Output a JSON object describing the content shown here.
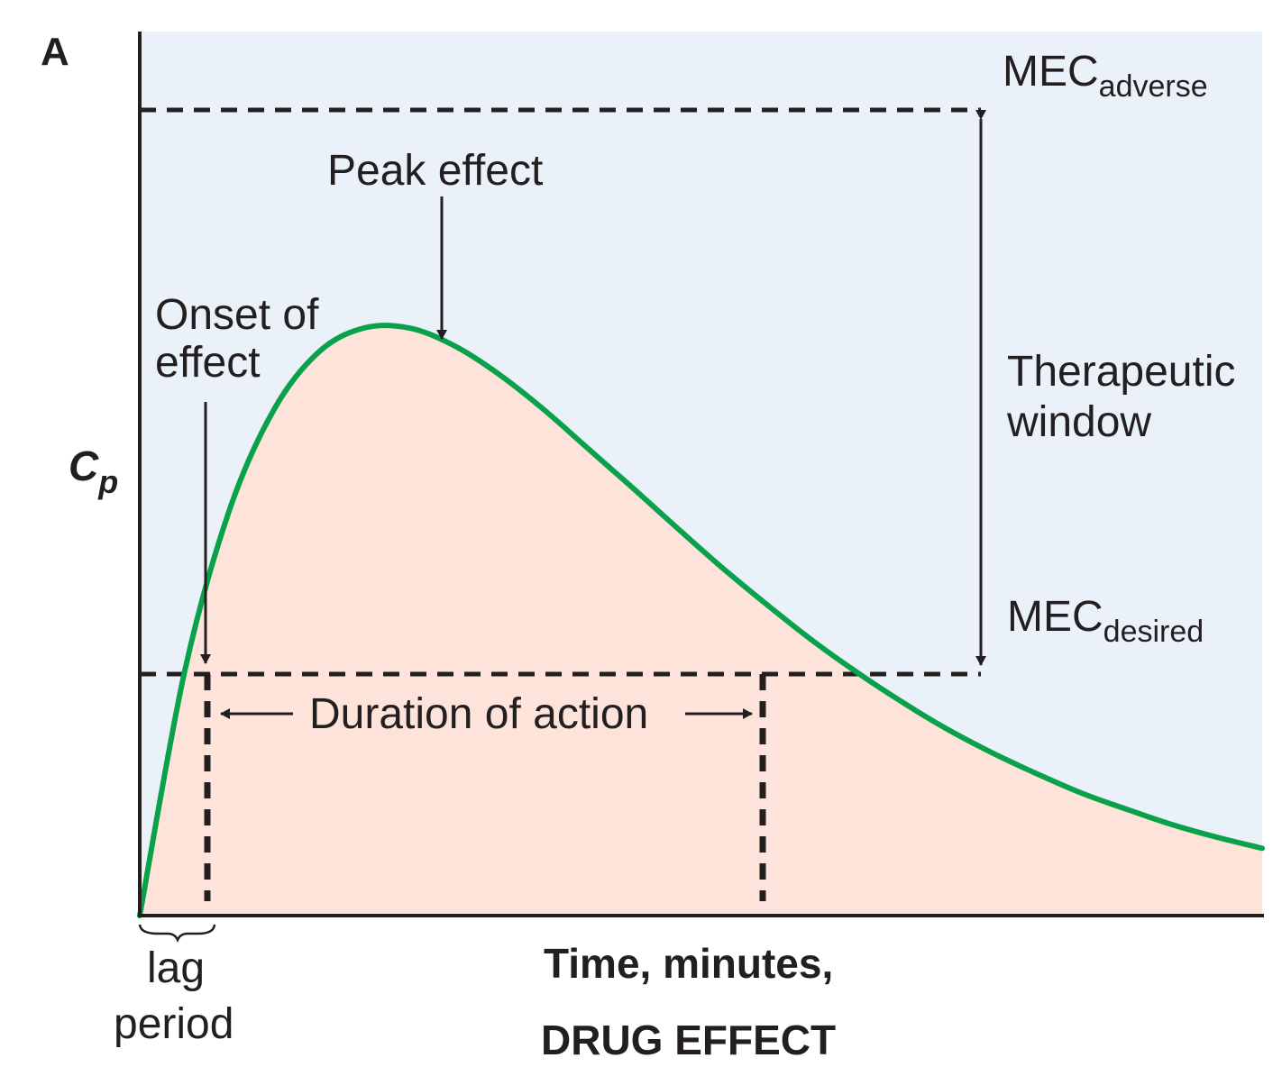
{
  "panel_label": "A",
  "colors": {
    "background": "#eaf1f9",
    "area_fill": "#fde3da",
    "curve": "#0aa14b",
    "axis": "#231f20",
    "dashed": "#231f20"
  },
  "labels": {
    "mec_adverse_main": "MEC",
    "mec_adverse_sub": "adverse",
    "mec_desired_main": "MEC",
    "mec_desired_sub": "desired",
    "therapeutic_window_line1": "Therapeutic",
    "therapeutic_window_line2": "window",
    "peak_effect": "Peak effect",
    "onset_line1": "Onset of",
    "onset_line2": "effect",
    "duration": "Duration of action",
    "lag_line1": "lag",
    "lag_line2": "period",
    "y_axis_main": "C",
    "y_axis_sub": "p",
    "x_axis_line1": "Time, minutes,",
    "x_axis_line2": "DRUG EFFECT"
  },
  "chart_data": {
    "type": "area",
    "title": "",
    "xlabel": "Time, minutes,",
    "ylabel": "Cp",
    "grid": false,
    "x": [
      0,
      1,
      2,
      3,
      4,
      5,
      6,
      7,
      8,
      9,
      10,
      11,
      12,
      13,
      14,
      15,
      16,
      17,
      18,
      19,
      20,
      21,
      22,
      23,
      24,
      25
    ],
    "series": [
      {
        "values": [
          0.0,
          2.9,
          4.82,
          6.02,
          6.7,
          6.98,
          6.98,
          6.77,
          6.43,
          6.01,
          5.54,
          5.07,
          4.59,
          4.12,
          3.68,
          3.26,
          2.88,
          2.53,
          2.21,
          1.93,
          1.68,
          1.45,
          1.26,
          1.08,
          0.93,
          0.8
        ]
      }
    ],
    "thresholds": {
      "MEC_desired": 2.5,
      "MEC_adverse": 9.5
    },
    "annotations": {
      "onset_time": 1.4,
      "peak_time": 5.5,
      "end_of_action_time": 17.1,
      "lag_period": [
        0,
        1.4
      ]
    },
    "xlim": [
      0,
      25
    ],
    "ylim": [
      0,
      10.5
    ]
  }
}
